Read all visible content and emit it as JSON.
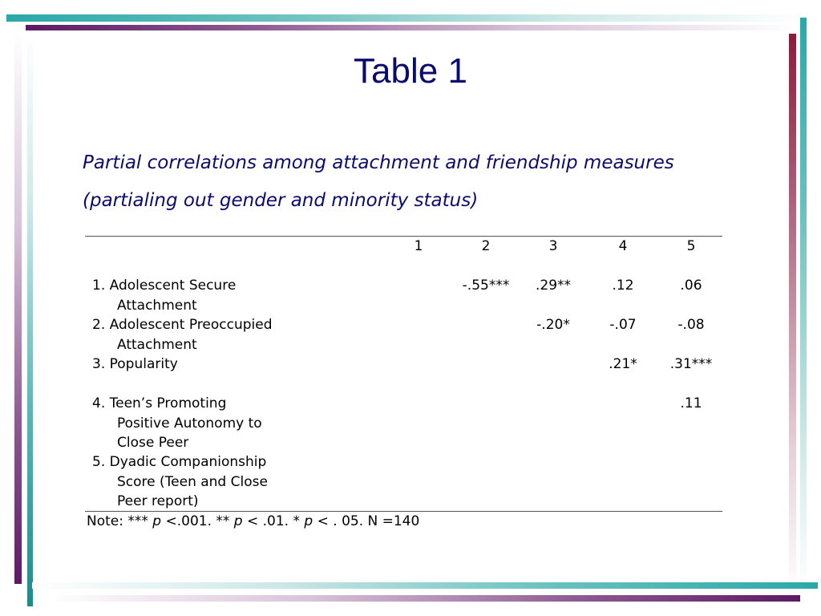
{
  "slide": {
    "title": "Table 1",
    "subtitle_line1": "Partial correlations among attachment and friendship measures",
    "subtitle_line2": "(partialing out gender and minority status)"
  },
  "table": {
    "columns": [
      "1",
      "2",
      "3",
      "4",
      "5"
    ],
    "rows": [
      {
        "label_line1": "1.  Adolescent Secure",
        "label_line2": "Attachment",
        "label_line3": "",
        "values": [
          "",
          "-.55***",
          ".29**",
          ".12",
          ".06"
        ]
      },
      {
        "label_line1": "2.  Adolescent Preoccupied",
        "label_line2": "Attachment",
        "label_line3": "",
        "values": [
          "",
          "",
          "-.20*",
          "-.07",
          "-.08"
        ]
      },
      {
        "label_line1": "3.  Popularity",
        "label_line2": "",
        "label_line3": "",
        "values": [
          "",
          "",
          "",
          ".21*",
          ".31***"
        ]
      },
      {
        "label_line1": "4.  Teen’s Promoting",
        "label_line2": "Positive Autonomy to",
        "label_line3": "Close Peer",
        "values": [
          "",
          "",
          "",
          "",
          ".11"
        ]
      },
      {
        "label_line1": "5.  Dyadic Companionship",
        "label_line2": "Score (Teen and Close",
        "label_line3": "Peer report)",
        "values": [
          "",
          "",
          "",
          "",
          ""
        ]
      }
    ]
  },
  "note": {
    "prefix": "Note: *** ",
    "p1": "p",
    "t1": " <.001.  ** ",
    "p2": "p",
    "t2": " < .01.  * ",
    "p3": "p",
    "t3": " < . 05.  N =140"
  },
  "colors": {
    "title": "#0b0b6e",
    "teal": "#2aa8a8",
    "purple": "#5c1a64",
    "maroon": "#8a1c3c"
  }
}
